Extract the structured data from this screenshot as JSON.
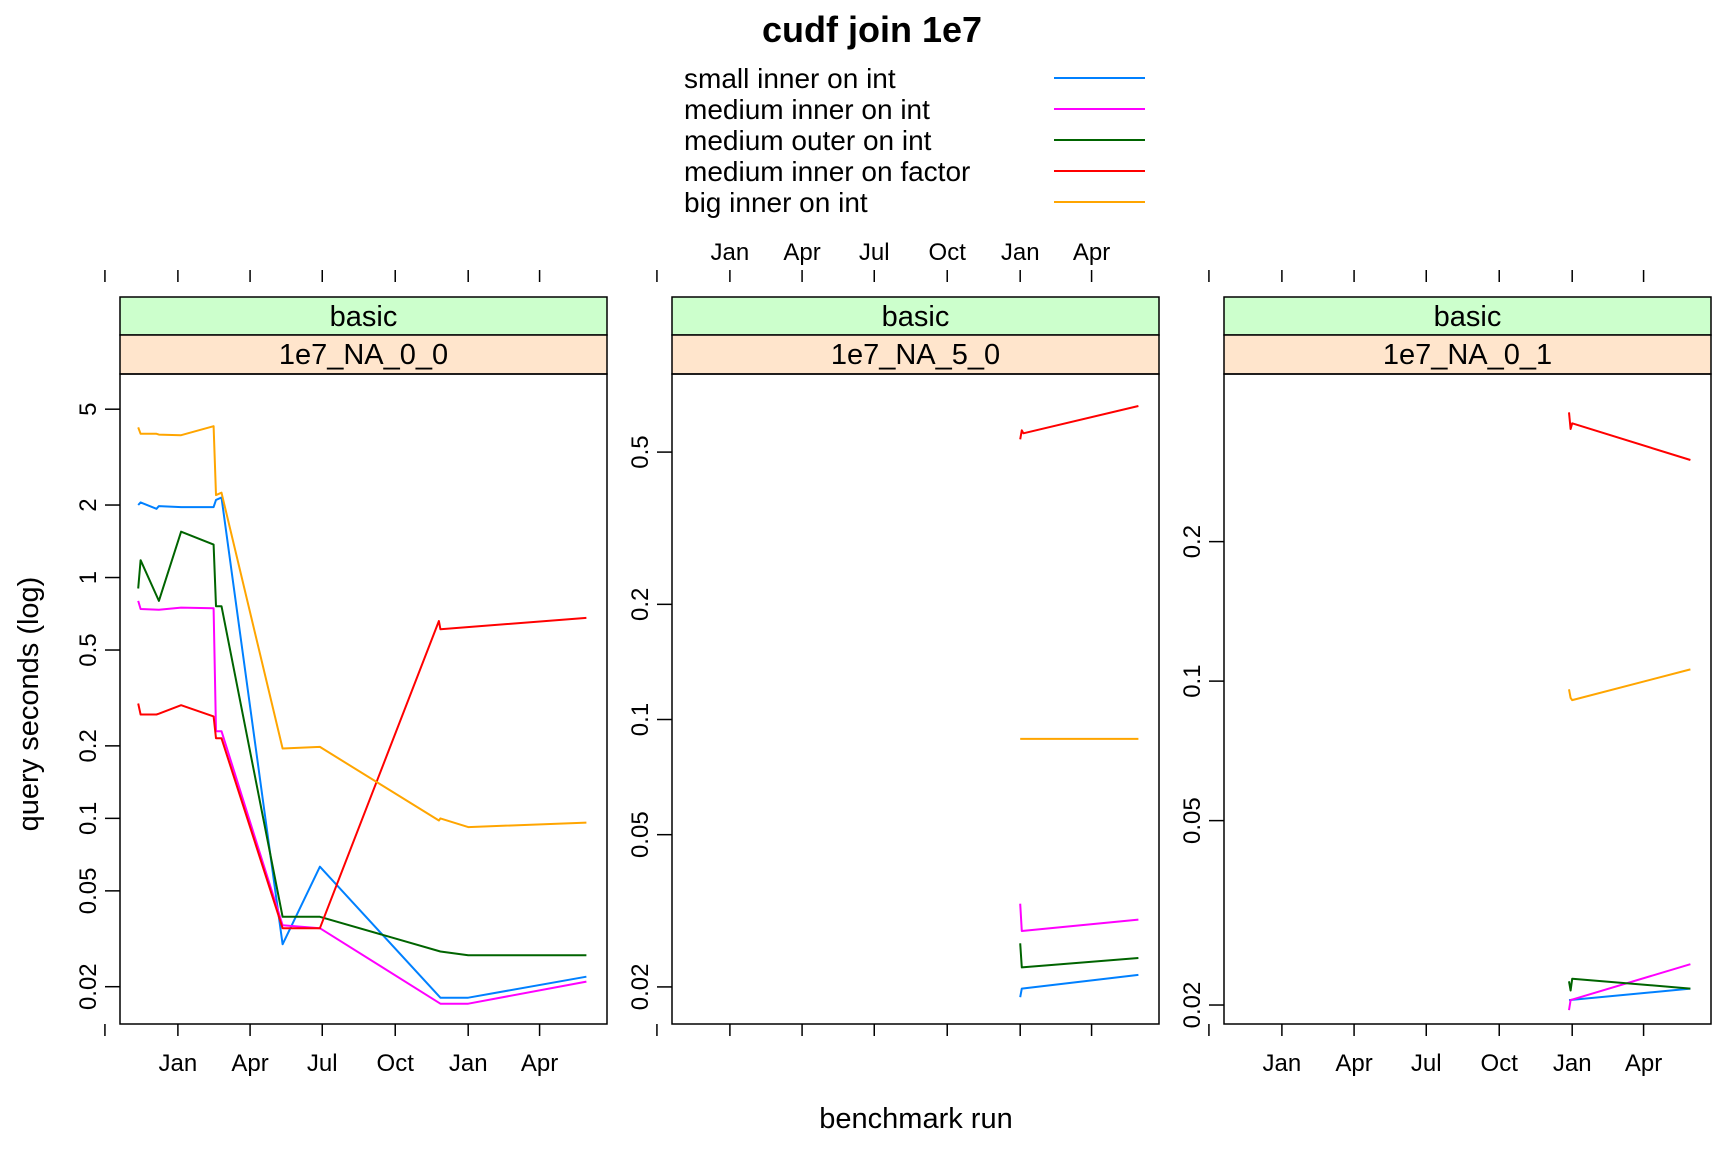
{
  "chart_data": {
    "type": "line",
    "title": "cudf join 1e7",
    "xlabel": "benchmark run",
    "ylabel": "query seconds (log)",
    "y_scale": "log",
    "x_axis": {
      "type": "date",
      "range": [
        "2019-10-20",
        "2021-06-25"
      ],
      "ticks": [
        {
          "date": "2019-10-01",
          "label": ""
        },
        {
          "date": "2020-01-01",
          "label": "Jan"
        },
        {
          "date": "2020-04-01",
          "label": "Apr"
        },
        {
          "date": "2020-07-01",
          "label": "Jul"
        },
        {
          "date": "2020-10-01",
          "label": "Oct"
        },
        {
          "date": "2021-01-01",
          "label": "Jan"
        },
        {
          "date": "2021-04-01",
          "label": "Apr"
        }
      ]
    },
    "legend": {
      "placement": "top",
      "entries": [
        {
          "label": "small inner on int",
          "color": "#0080ff"
        },
        {
          "label": "medium inner on int",
          "color": "#ff00ff"
        },
        {
          "label": "medium outer on int",
          "color": "#006400"
        },
        {
          "label": "medium inner on factor",
          "color": "#ff0000"
        },
        {
          "label": "big inner on int",
          "color": "#ffa500"
        }
      ]
    },
    "panels": [
      {
        "strip_top": "basic",
        "strip_bottom": "1e7_NA_0_0",
        "ylim": [
          0.014,
          7
        ],
        "yticks": [
          0.02,
          0.05,
          0.1,
          0.2,
          0.5,
          1,
          2,
          5
        ],
        "ytick_labels": [
          "0.02",
          "0.05",
          "0.1",
          "0.2",
          "0.5",
          "1",
          "2",
          "5"
        ],
        "x_tick_labels": "bottom",
        "series": [
          {
            "name": "small inner on int",
            "color": "#0080ff",
            "points": [
              [
                "2019-11-12",
                2.0
              ],
              [
                "2019-11-15",
                2.05
              ],
              [
                "2019-12-05",
                1.93
              ],
              [
                "2019-12-08",
                1.98
              ],
              [
                "2020-01-05",
                1.96
              ],
              [
                "2020-02-15",
                1.96
              ],
              [
                "2020-02-18",
                2.1
              ],
              [
                "2020-02-25",
                2.15
              ],
              [
                "2020-05-12",
                0.03
              ],
              [
                "2020-06-28",
                0.063
              ],
              [
                "2020-11-27",
                0.018
              ],
              [
                "2021-01-01",
                0.018
              ],
              [
                "2021-05-30",
                0.022
              ]
            ]
          },
          {
            "name": "medium inner on int",
            "color": "#ff00ff",
            "points": [
              [
                "2019-11-12",
                0.8
              ],
              [
                "2019-11-15",
                0.74
              ],
              [
                "2019-12-08",
                0.735
              ],
              [
                "2020-01-05",
                0.75
              ],
              [
                "2020-02-15",
                0.745
              ],
              [
                "2020-02-18",
                0.23
              ],
              [
                "2020-02-25",
                0.23
              ],
              [
                "2020-05-12",
                0.036
              ],
              [
                "2020-06-28",
                0.035
              ],
              [
                "2020-11-27",
                0.017
              ],
              [
                "2021-01-01",
                0.017
              ],
              [
                "2021-05-30",
                0.021
              ]
            ]
          },
          {
            "name": "medium outer on int",
            "color": "#006400",
            "points": [
              [
                "2019-11-12",
                0.9
              ],
              [
                "2019-11-15",
                1.18
              ],
              [
                "2019-12-08",
                0.8
              ],
              [
                "2020-01-05",
                1.55
              ],
              [
                "2020-02-15",
                1.37
              ],
              [
                "2020-02-18",
                0.76
              ],
              [
                "2020-02-25",
                0.76
              ],
              [
                "2020-05-12",
                0.039
              ],
              [
                "2020-06-28",
                0.039
              ],
              [
                "2020-11-27",
                0.028
              ],
              [
                "2021-01-01",
                0.027
              ],
              [
                "2021-05-30",
                0.027
              ]
            ]
          },
          {
            "name": "medium inner on factor",
            "color": "#ff0000",
            "points": [
              [
                "2019-11-12",
                0.3
              ],
              [
                "2019-11-15",
                0.27
              ],
              [
                "2019-12-05",
                0.27
              ],
              [
                "2019-12-08",
                0.272
              ],
              [
                "2020-01-05",
                0.295
              ],
              [
                "2020-02-15",
                0.265
              ],
              [
                "2020-02-18",
                0.215
              ],
              [
                "2020-02-25",
                0.215
              ],
              [
                "2020-05-12",
                0.035
              ],
              [
                "2020-06-28",
                0.035
              ],
              [
                "2020-11-25",
                0.66
              ],
              [
                "2020-11-27",
                0.61
              ],
              [
                "2021-05-30",
                0.68
              ]
            ]
          },
          {
            "name": "big inner on int",
            "color": "#ffa500",
            "points": [
              [
                "2019-11-12",
                4.2
              ],
              [
                "2019-11-15",
                3.95
              ],
              [
                "2019-12-05",
                3.95
              ],
              [
                "2019-12-08",
                3.92
              ],
              [
                "2020-01-05",
                3.9
              ],
              [
                "2020-02-15",
                4.25
              ],
              [
                "2020-02-18",
                2.2
              ],
              [
                "2020-02-25",
                2.25
              ],
              [
                "2020-05-12",
                0.195
              ],
              [
                "2020-06-28",
                0.198
              ],
              [
                "2020-11-25",
                0.098
              ],
              [
                "2020-11-27",
                0.1
              ],
              [
                "2021-01-01",
                0.092
              ],
              [
                "2021-05-30",
                0.096
              ]
            ]
          }
        ]
      },
      {
        "strip_top": "basic",
        "strip_bottom": "1e7_NA_5_0",
        "ylim": [
          0.016,
          0.8
        ],
        "yticks": [
          0.02,
          0.05,
          0.1,
          0.2,
          0.5
        ],
        "ytick_labels": [
          "0.02",
          "0.05",
          "0.1",
          "0.2",
          "0.5"
        ],
        "x_tick_labels": "top",
        "series": [
          {
            "name": "small inner on int",
            "color": "#0080ff",
            "points": [
              [
                "2021-01-01",
                0.0188
              ],
              [
                "2021-01-03",
                0.0198
              ],
              [
                "2021-05-30",
                0.0215
              ]
            ]
          },
          {
            "name": "medium inner on int",
            "color": "#ff00ff",
            "points": [
              [
                "2021-01-01",
                0.033
              ],
              [
                "2021-01-03",
                0.028
              ],
              [
                "2021-05-30",
                0.03
              ]
            ]
          },
          {
            "name": "medium outer on int",
            "color": "#006400",
            "points": [
              [
                "2021-01-01",
                0.026
              ],
              [
                "2021-01-03",
                0.0225
              ],
              [
                "2021-05-30",
                0.0238
              ]
            ]
          },
          {
            "name": "medium inner on factor",
            "color": "#ff0000",
            "points": [
              [
                "2021-01-01",
                0.54
              ],
              [
                "2021-01-03",
                0.57
              ],
              [
                "2021-01-05",
                0.56
              ],
              [
                "2021-05-30",
                0.66
              ]
            ]
          },
          {
            "name": "big inner on int",
            "color": "#ffa500",
            "points": [
              [
                "2021-01-01",
                0.089
              ],
              [
                "2021-05-30",
                0.089
              ]
            ]
          }
        ]
      },
      {
        "strip_top": "basic",
        "strip_bottom": "1e7_NA_0_1",
        "ylim": [
          0.0182,
          0.46
        ],
        "yticks": [
          0.02,
          0.05,
          0.1,
          0.2
        ],
        "ytick_labels": [
          "0.02",
          "0.05",
          "0.1",
          "0.2"
        ],
        "x_tick_labels": "bottom",
        "series": [
          {
            "name": "small inner on int",
            "color": "#0080ff",
            "points": [
              [
                "2020-12-28",
                0.0205
              ],
              [
                "2021-05-30",
                0.0217
              ]
            ]
          },
          {
            "name": "medium inner on int",
            "color": "#ff00ff",
            "points": [
              [
                "2020-12-28",
                0.0195
              ],
              [
                "2020-12-30",
                0.0205
              ],
              [
                "2021-05-30",
                0.0245
              ]
            ]
          },
          {
            "name": "medium outer on int",
            "color": "#006400",
            "points": [
              [
                "2020-12-28",
                0.0225
              ],
              [
                "2020-12-30",
                0.0215
              ],
              [
                "2021-01-01",
                0.0228
              ],
              [
                "2021-05-30",
                0.0217
              ]
            ]
          },
          {
            "name": "medium inner on factor",
            "color": "#ff0000",
            "points": [
              [
                "2020-12-28",
                0.38
              ],
              [
                "2020-12-30",
                0.35
              ],
              [
                "2021-01-01",
                0.36
              ],
              [
                "2021-05-30",
                0.3
              ]
            ]
          },
          {
            "name": "big inner on int",
            "color": "#ffa500",
            "points": [
              [
                "2020-12-28",
                0.096
              ],
              [
                "2020-12-30",
                0.092
              ],
              [
                "2021-01-01",
                0.091
              ],
              [
                "2021-05-30",
                0.106
              ]
            ]
          }
        ]
      }
    ]
  }
}
